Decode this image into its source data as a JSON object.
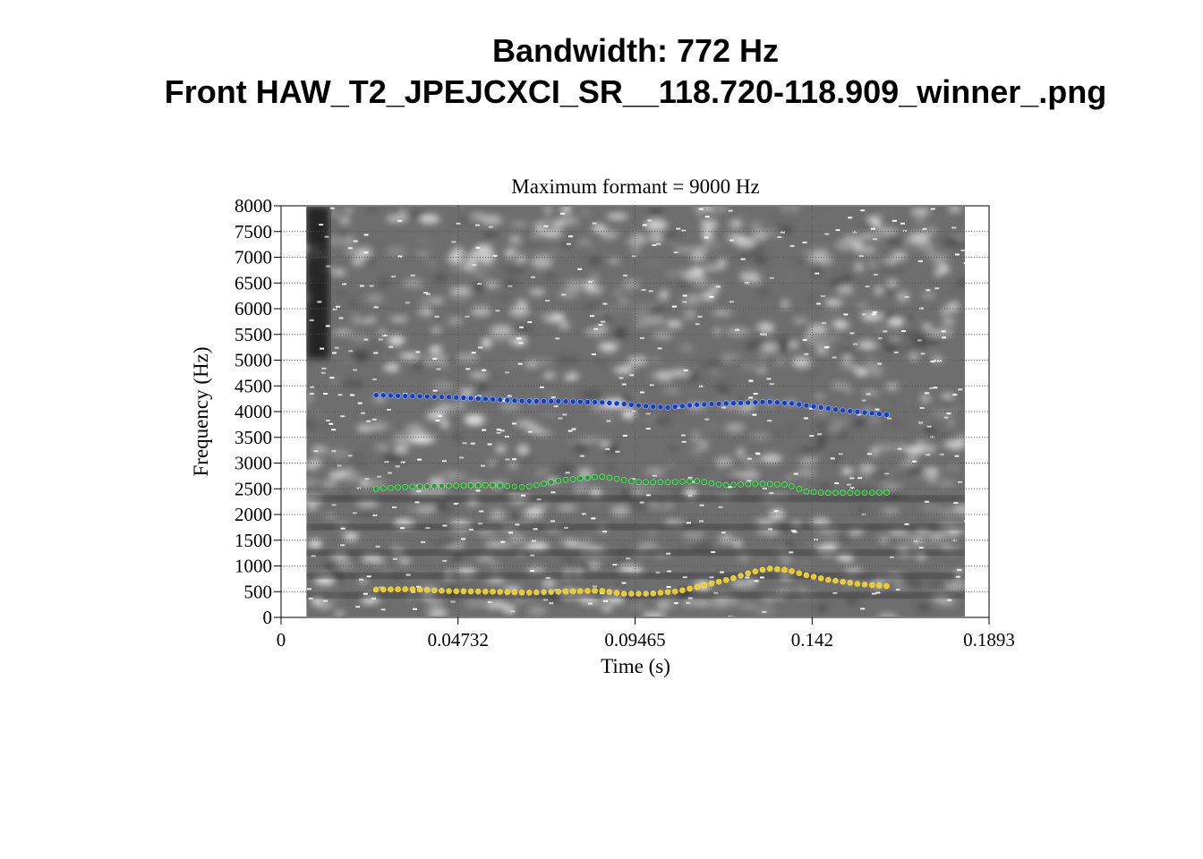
{
  "figure": {
    "title_line1": "Bandwidth: 772 Hz",
    "title_line2": "Front HAW_T2_JPEJCXCI_SR__118.720-118.909_winner_.png"
  },
  "chart_data": {
    "type": "scatter",
    "title": "Maximum formant  =  9000 Hz",
    "xlabel": "Time (s)",
    "ylabel": "Frequency (Hz)",
    "xlim": [
      0,
      0.1893
    ],
    "ylim": [
      0,
      8000
    ],
    "x_ticks": [
      0,
      0.04732,
      0.09465,
      0.142,
      0.1893
    ],
    "x_tick_labels": [
      "0",
      "0.04732",
      "0.09465",
      "0.142",
      "0.1893"
    ],
    "y_ticks": [
      0,
      500,
      1000,
      1500,
      2000,
      2500,
      3000,
      3500,
      4000,
      4500,
      5000,
      5500,
      6000,
      6500,
      7000,
      7500,
      8000
    ],
    "y_tick_labels": [
      "0",
      "500",
      "1000",
      "1500",
      "2000",
      "2500",
      "3000",
      "3500",
      "4000",
      "4500",
      "5000",
      "5500",
      "6000",
      "6500",
      "7000",
      "7500",
      "8000"
    ],
    "grid": true,
    "background": "grayscale spectrogram",
    "spectrogram_time_range": [
      0.0068,
      0.1829
    ],
    "series": [
      {
        "color": "#f5cc00",
        "x": [
          0.0254,
          0.0344,
          0.0454,
          0.0564,
          0.0654,
          0.0744,
          0.0854,
          0.0914,
          0.0984,
          0.1064,
          0.1134,
          0.1204,
          0.1254,
          0.1304,
          0.1354,
          0.1404,
          0.1464,
          0.1544,
          0.1634
        ],
        "y": [
          540,
          550,
          510,
          500,
          480,
          500,
          520,
          460,
          460,
          510,
          630,
          750,
          870,
          950,
          920,
          820,
          730,
          650,
          600
        ]
      },
      {
        "color": "#1fa32a",
        "x": [
          0.0254,
          0.0344,
          0.0454,
          0.0564,
          0.0654,
          0.0744,
          0.0854,
          0.0954,
          0.1044,
          0.1114,
          0.1184,
          0.1274,
          0.1354,
          0.1404,
          0.1454,
          0.1544,
          0.1634
        ],
        "y": [
          2500,
          2540,
          2560,
          2570,
          2530,
          2660,
          2740,
          2630,
          2630,
          2650,
          2570,
          2600,
          2580,
          2450,
          2420,
          2420,
          2430
        ]
      },
      {
        "color": "#0b3fd6",
        "x": [
          0.0254,
          0.0354,
          0.0454,
          0.0564,
          0.0654,
          0.0744,
          0.0854,
          0.0914,
          0.0984,
          0.1034,
          0.1104,
          0.1164,
          0.1234,
          0.1304,
          0.1364,
          0.1424,
          0.1504,
          0.1594,
          0.1634
        ],
        "y": [
          4320,
          4300,
          4280,
          4240,
          4200,
          4200,
          4180,
          4150,
          4100,
          4080,
          4130,
          4150,
          4170,
          4190,
          4160,
          4100,
          4020,
          3960,
          3930
        ]
      }
    ]
  }
}
